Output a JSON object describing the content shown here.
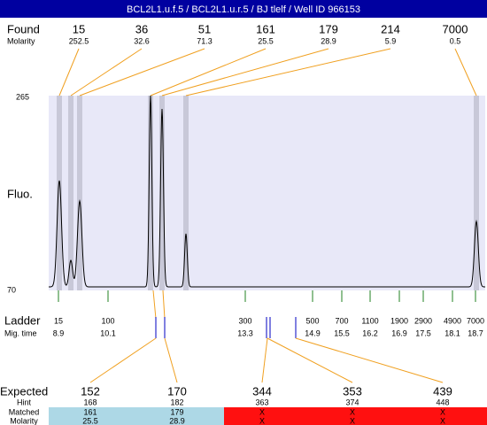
{
  "header": {
    "title": "BCL2L1.u.f.5 / BCL2L1.u.r.5 / BJ tlelf / Well ID 966153"
  },
  "found": {
    "label": "Found",
    "sublabel": "Molarity",
    "items": [
      {
        "size": 15,
        "molarity": 252.5
      },
      {
        "size": 36,
        "molarity": 32.6
      },
      {
        "size": 51,
        "molarity": 71.3
      },
      {
        "size": 161,
        "molarity": 25.5
      },
      {
        "size": 179,
        "molarity": 28.9
      },
      {
        "size": 214,
        "molarity": 5.9
      },
      {
        "size": 7000,
        "molarity": 0.5
      }
    ]
  },
  "axis": {
    "label": "Fluo.",
    "top": 265,
    "bottom": 70
  },
  "ladder": {
    "label": "Ladder",
    "sublabel": "Mig. time",
    "items": [
      {
        "size": 15,
        "time": 8.9
      },
      {
        "size": 100,
        "time": 10.1
      },
      {
        "size": 300,
        "time": 13.3
      },
      {
        "size": 500,
        "time": 14.9
      },
      {
        "size": 700,
        "time": 15.5
      },
      {
        "size": 1100,
        "time": 16.2
      },
      {
        "size": 1900,
        "time": 16.9
      },
      {
        "size": 2900,
        "time": 17.5
      },
      {
        "size": 4900,
        "time": 18.1
      },
      {
        "size": 7000,
        "time": 18.7
      }
    ]
  },
  "expected": {
    "label": "Expected",
    "hint_label": "Hint",
    "matched_label": "Matched",
    "molarity_label": "Molarity",
    "items": [
      {
        "size": 152,
        "hint": 168,
        "matched": 161,
        "molarity": 25.5
      },
      {
        "size": 170,
        "hint": 182,
        "matched": 179,
        "molarity": 28.9
      },
      {
        "size": 344,
        "hint": 363,
        "matched": "X",
        "molarity": "X"
      },
      {
        "size": 353,
        "hint": 374,
        "matched": "X",
        "molarity": "X"
      },
      {
        "size": 439,
        "hint": 448,
        "matched": "X",
        "molarity": "X"
      }
    ]
  }
}
